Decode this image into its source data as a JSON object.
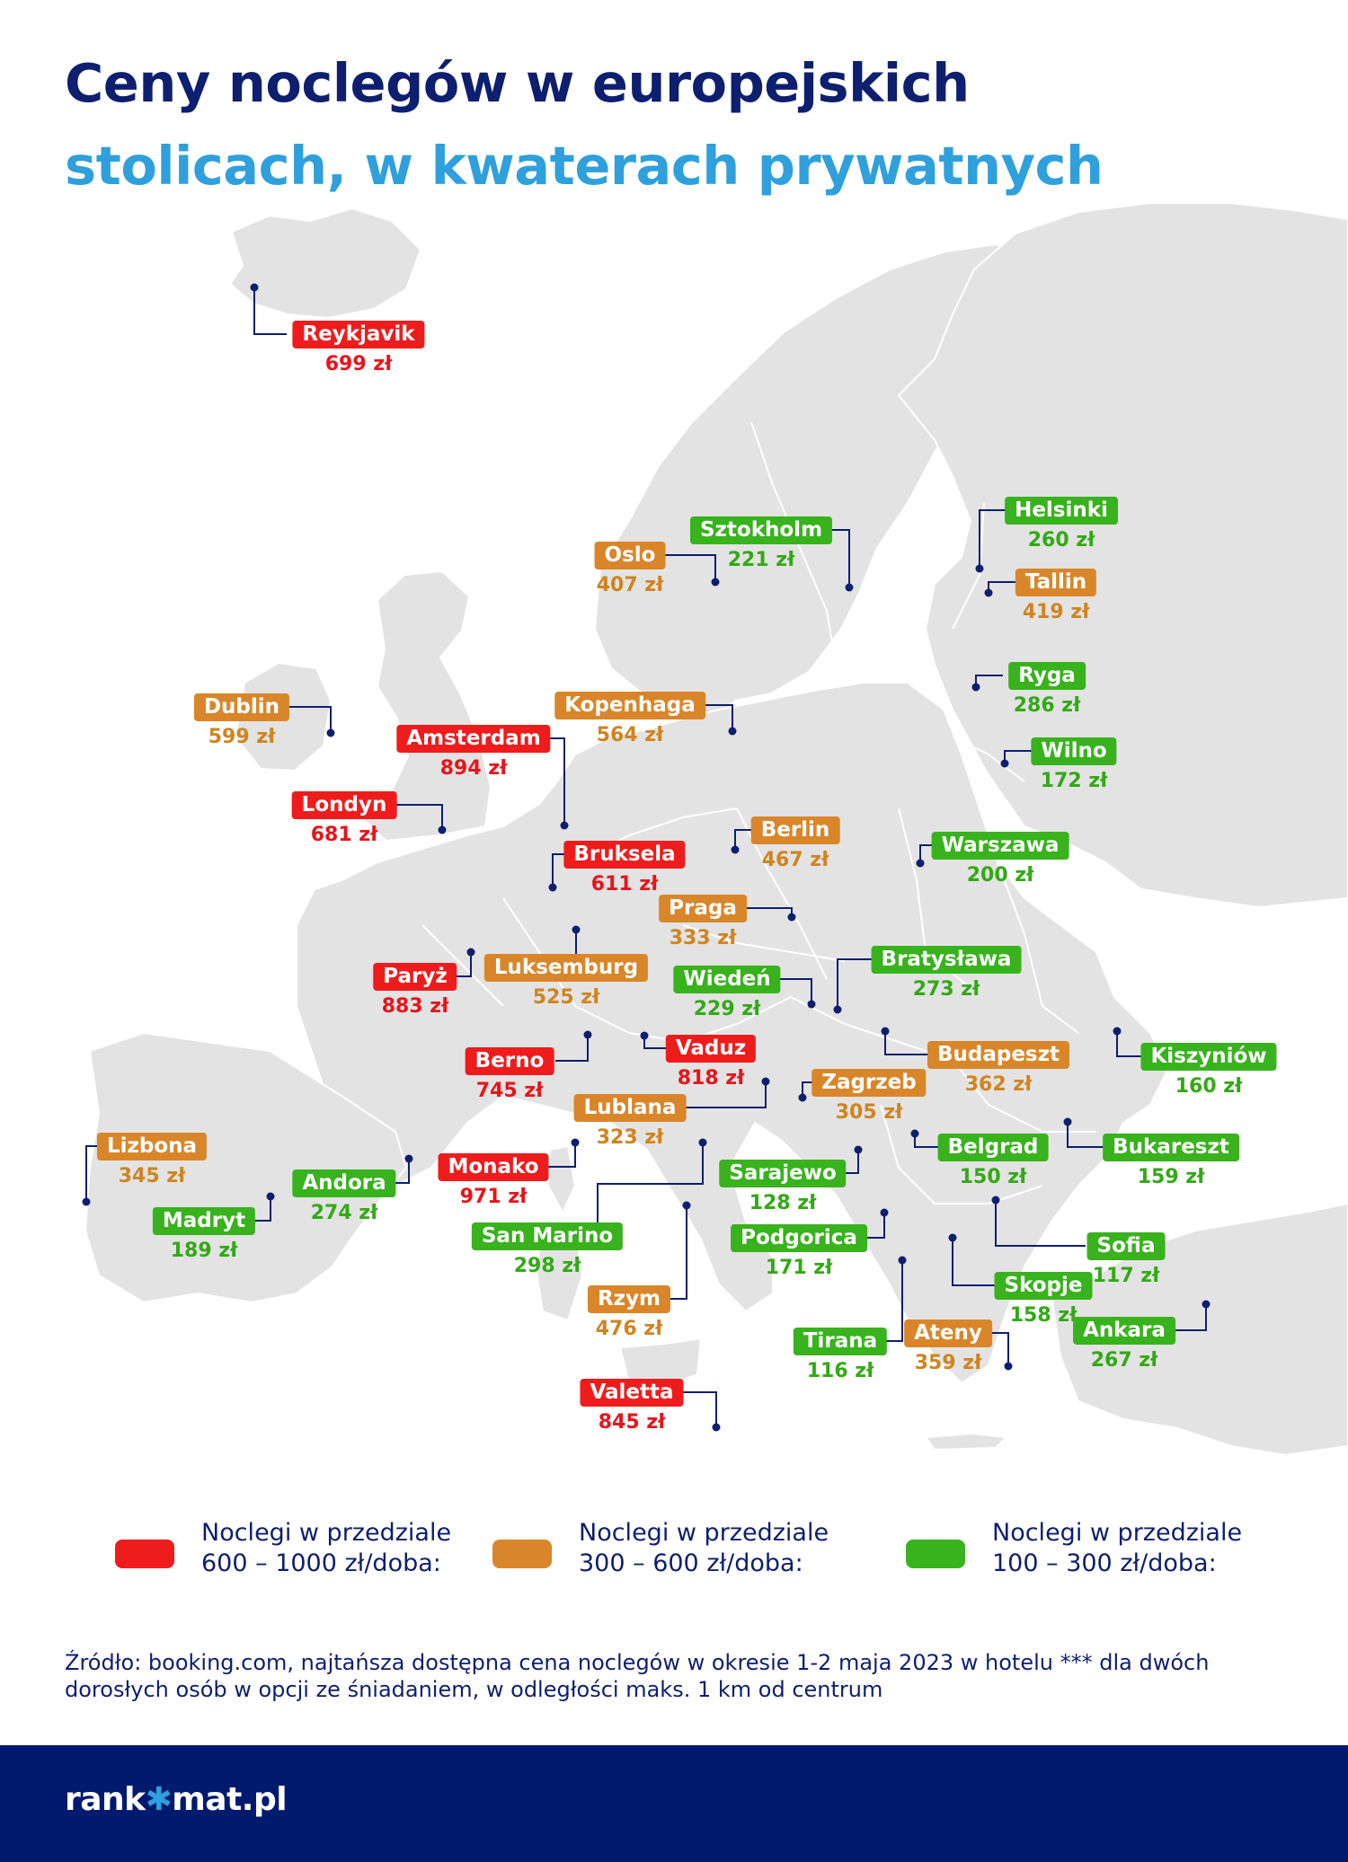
{
  "title": {
    "line1": "Ceny noclegów w europejskich",
    "line2": "stolicach, w kwaterach prywatnych"
  },
  "colors": {
    "red": "#ee1c1c",
    "orange": "#d9862a",
    "green": "#38b21d",
    "navy": "#0d1f6e",
    "blue": "#2fa0db",
    "land": "#e3e3e3"
  },
  "cities": [
    {
      "name": "Reykjavik",
      "price": "699 zł",
      "tier": "red"
    },
    {
      "name": "Oslo",
      "price": "407 zł",
      "tier": "orange"
    },
    {
      "name": "Sztokholm",
      "price": "221 zł",
      "tier": "green"
    },
    {
      "name": "Helsinki",
      "price": "260 zł",
      "tier": "green"
    },
    {
      "name": "Tallin",
      "price": "419 zł",
      "tier": "orange"
    },
    {
      "name": "Ryga",
      "price": "286 zł",
      "tier": "green"
    },
    {
      "name": "Wilno",
      "price": "172 zł",
      "tier": "green"
    },
    {
      "name": "Dublin",
      "price": "599 zł",
      "tier": "orange"
    },
    {
      "name": "Kopenhaga",
      "price": "564 zł",
      "tier": "orange"
    },
    {
      "name": "Amsterdam",
      "price": "894 zł",
      "tier": "red"
    },
    {
      "name": "Londyn",
      "price": "681 zł",
      "tier": "red"
    },
    {
      "name": "Berlin",
      "price": "467 zł",
      "tier": "orange"
    },
    {
      "name": "Warszawa",
      "price": "200 zł",
      "tier": "green"
    },
    {
      "name": "Bruksela",
      "price": "611 zł",
      "tier": "red"
    },
    {
      "name": "Praga",
      "price": "333 zł",
      "tier": "orange"
    },
    {
      "name": "Paryż",
      "price": "883 zł",
      "tier": "red"
    },
    {
      "name": "Luksemburg",
      "price": "525 zł",
      "tier": "orange"
    },
    {
      "name": "Wiedeń",
      "price": "229 zł",
      "tier": "green"
    },
    {
      "name": "Bratysława",
      "price": "273 zł",
      "tier": "green"
    },
    {
      "name": "Berno",
      "price": "745 zł",
      "tier": "red"
    },
    {
      "name": "Vaduz",
      "price": "818 zł",
      "tier": "red"
    },
    {
      "name": "Budapeszt",
      "price": "362 zł",
      "tier": "orange"
    },
    {
      "name": "Kiszyniów",
      "price": "160 zł",
      "tier": "green"
    },
    {
      "name": "Zagrzeb",
      "price": "305 zł",
      "tier": "orange"
    },
    {
      "name": "Lublana",
      "price": "323 zł",
      "tier": "orange"
    },
    {
      "name": "Lizbona",
      "price": "345 zł",
      "tier": "orange"
    },
    {
      "name": "Monako",
      "price": "971 zł",
      "tier": "red"
    },
    {
      "name": "Andora",
      "price": "274 zł",
      "tier": "green"
    },
    {
      "name": "Madryt",
      "price": "189 zł",
      "tier": "green"
    },
    {
      "name": "Belgrad",
      "price": "150 zł",
      "tier": "green"
    },
    {
      "name": "Bukareszt",
      "price": "159 zł",
      "tier": "green"
    },
    {
      "name": "Sarajewo",
      "price": "128 zł",
      "tier": "green"
    },
    {
      "name": "San Marino",
      "price": "298 zł",
      "tier": "green"
    },
    {
      "name": "Podgorica",
      "price": "171 zł",
      "tier": "green"
    },
    {
      "name": "Sofia",
      "price": "117 zł",
      "tier": "green"
    },
    {
      "name": "Skopje",
      "price": "158 zł",
      "tier": "green"
    },
    {
      "name": "Rzym",
      "price": "476 zł",
      "tier": "orange"
    },
    {
      "name": "Tirana",
      "price": "116 zł",
      "tier": "green"
    },
    {
      "name": "Ateny",
      "price": "359 zł",
      "tier": "orange"
    },
    {
      "name": "Ankara",
      "price": "267 zł",
      "tier": "green"
    },
    {
      "name": "Valetta",
      "price": "845 zł",
      "tier": "red"
    }
  ],
  "legend": [
    {
      "tier": "red",
      "line1": "Noclegi w przedziale",
      "line2": "600 – 1000 zł/doba:"
    },
    {
      "tier": "orange",
      "line1": "Noclegi w przedziale",
      "line2": "300 – 600 zł/doba:"
    },
    {
      "tier": "green",
      "line1": "Noclegi w przedziale",
      "line2": "100 – 300 zł/doba:"
    }
  ],
  "source": {
    "line1": "Źródło: booking.com, najtańsza dostępna cena noclegów w okresie 1-2 maja 2023 w hotelu *** dla dwóch",
    "line2": "dorosłych osób w opcji ze śniadaniem, w odległości maks. 1 km od centrum"
  },
  "logo": {
    "part1": "rank",
    "star": "✱",
    "part2": "mat.pl"
  }
}
